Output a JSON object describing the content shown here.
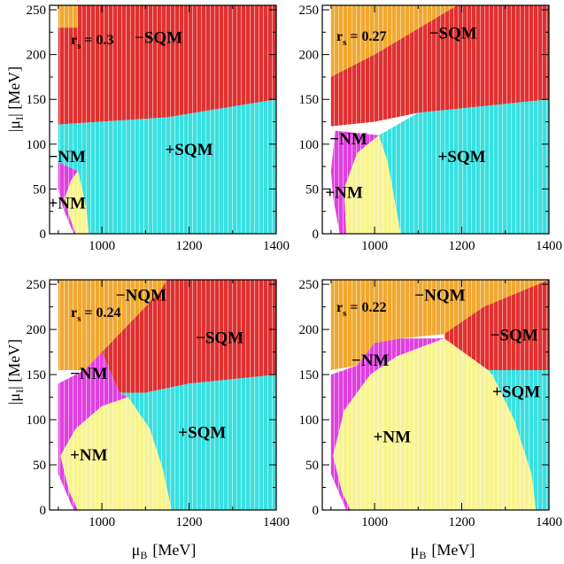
{
  "figure": {
    "x_axis_label": "μ",
    "x_axis_sub": "B",
    "x_axis_unit": "[MeV]",
    "y_axis_label": "|μ",
    "y_axis_sub": "I",
    "y_axis_unit": "| [MeV]"
  },
  "colors": {
    "NQM_orange": "#f0a830",
    "SQM_minus_red": "#e03030",
    "SQM_plus_cyan": "#38e0e0",
    "NM_plus_yellow": "#f8f490",
    "NM_minus_magenta": "#e040e0"
  },
  "chart_data": [
    {
      "type": "phase-diagram",
      "panel": "top-left",
      "rs_prefix": "r",
      "rs_sub": "s",
      "rs_value": "= 0.3",
      "xlim": [
        880,
        1400
      ],
      "ylim": [
        0,
        255
      ],
      "x_ticks": [
        "1000",
        "1200",
        "1400"
      ],
      "y_ticks": [
        "0",
        "50",
        "100",
        "150",
        "200",
        "250"
      ],
      "regions": [
        {
          "name": "NQM",
          "label": "",
          "color": "#f0a830",
          "polygon": [
            [
              900,
              255
            ],
            [
              945,
              255
            ],
            [
              945,
              230
            ],
            [
              900,
              230
            ]
          ]
        },
        {
          "name": "-SQM",
          "label": "−SQM",
          "label_at": [
            1130,
            213
          ],
          "color": "#e03030",
          "polygon": [
            [
              900,
              230
            ],
            [
              945,
              230
            ],
            [
              945,
              255
            ],
            [
              1400,
              255
            ],
            [
              1400,
              150
            ],
            [
              1150,
              130
            ],
            [
              900,
              122
            ]
          ]
        },
        {
          "name": "+SQM",
          "label": "+SQM",
          "label_at": [
            1200,
            88
          ],
          "color": "#38e0e0",
          "polygon": [
            [
              900,
              122
            ],
            [
              1150,
              130
            ],
            [
              1400,
              150
            ],
            [
              1400,
              0
            ],
            [
              970,
              0
            ],
            [
              965,
              25
            ],
            [
              955,
              50
            ],
            [
              945,
              70
            ],
            [
              900,
              80
            ]
          ]
        },
        {
          "name": "-NM",
          "label": "−NM",
          "label_at": [
            920,
            80
          ],
          "color": "#e040e0",
          "polygon": [
            [
              900,
              80
            ],
            [
              945,
              70
            ],
            [
              930,
              60
            ],
            [
              915,
              40
            ],
            [
              925,
              20
            ],
            [
              940,
              0
            ],
            [
              935,
              0
            ],
            [
              910,
              30
            ],
            [
              900,
              50
            ]
          ]
        },
        {
          "name": "+NM",
          "label": "+NM",
          "label_at": [
            920,
            28
          ],
          "color": "#f8f490",
          "polygon": [
            [
              945,
              70
            ],
            [
              955,
              50
            ],
            [
              965,
              25
            ],
            [
              970,
              0
            ],
            [
              940,
              0
            ],
            [
              925,
              20
            ],
            [
              915,
              40
            ],
            [
              930,
              60
            ]
          ]
        }
      ]
    },
    {
      "type": "phase-diagram",
      "panel": "top-right",
      "rs_prefix": "r",
      "rs_sub": "s",
      "rs_value": "= 0.27",
      "xlim": [
        880,
        1400
      ],
      "ylim": [
        0,
        255
      ],
      "x_ticks": [
        "1000",
        "1200",
        "1400"
      ],
      "y_ticks": [
        "0",
        "50",
        "100",
        "150",
        "200",
        "250"
      ],
      "regions": [
        {
          "name": "NQM",
          "label": "",
          "color": "#f0a830",
          "polygon": [
            [
              900,
              255
            ],
            [
              1190,
              255
            ],
            [
              1000,
              200
            ],
            [
              900,
              175
            ]
          ]
        },
        {
          "name": "-SQM",
          "label": "−SQM",
          "label_at": [
            1180,
            218
          ],
          "color": "#e03030",
          "polygon": [
            [
              1190,
              255
            ],
            [
              1400,
              255
            ],
            [
              1400,
              150
            ],
            [
              1100,
              135
            ],
            [
              1000,
              125
            ],
            [
              900,
              120
            ],
            [
              900,
              175
            ],
            [
              1000,
              200
            ]
          ]
        },
        {
          "name": "+SQM",
          "label": "+SQM",
          "label_at": [
            1200,
            80
          ],
          "color": "#38e0e0",
          "polygon": [
            [
              1010,
              110
            ],
            [
              1100,
              135
            ],
            [
              1400,
              150
            ],
            [
              1400,
              0
            ],
            [
              1060,
              0
            ],
            [
              1045,
              40
            ],
            [
              1030,
              80
            ]
          ]
        },
        {
          "name": "-NM",
          "label": "−NM",
          "label_at": [
            940,
            100
          ],
          "color": "#e040e0",
          "polygon": [
            [
              910,
              115
            ],
            [
              1010,
              110
            ],
            [
              960,
              90
            ],
            [
              930,
              50
            ],
            [
              935,
              0
            ],
            [
              920,
              0
            ],
            [
              905,
              40
            ],
            [
              900,
              70
            ]
          ]
        },
        {
          "name": "+NM",
          "label": "+NM",
          "label_at": [
            930,
            40
          ],
          "color": "#f8f490",
          "polygon": [
            [
              1010,
              110
            ],
            [
              1030,
              80
            ],
            [
              1045,
              40
            ],
            [
              1060,
              0
            ],
            [
              935,
              0
            ],
            [
              930,
              50
            ],
            [
              960,
              90
            ]
          ]
        }
      ]
    },
    {
      "type": "phase-diagram",
      "panel": "bottom-left",
      "rs_prefix": "r",
      "rs_sub": "s",
      "rs_value": "= 0.24",
      "xlim": [
        880,
        1400
      ],
      "ylim": [
        0,
        255
      ],
      "x_ticks": [
        "1000",
        "1200",
        "1400"
      ],
      "y_ticks": [
        "0",
        "50",
        "100",
        "150",
        "200",
        "250"
      ],
      "regions": [
        {
          "name": "-NQM",
          "label": "−NQM",
          "label_at": [
            1090,
            232
          ],
          "color": "#f0a830",
          "polygon": [
            [
              900,
              255
            ],
            [
              1150,
              255
            ],
            [
              1130,
              240
            ],
            [
              1050,
              200
            ],
            [
              1000,
              175
            ],
            [
              960,
              155
            ],
            [
              900,
              155
            ]
          ]
        },
        {
          "name": "-SQM",
          "label": "−SQM",
          "label_at": [
            1270,
            185
          ],
          "color": "#e03030",
          "polygon": [
            [
              1150,
              255
            ],
            [
              1400,
              255
            ],
            [
              1400,
              150
            ],
            [
              1200,
              140
            ],
            [
              1100,
              130
            ],
            [
              1040,
              130
            ],
            [
              1000,
              175
            ],
            [
              1050,
              200
            ],
            [
              1130,
              240
            ]
          ]
        },
        {
          "name": "+SQM",
          "label": "+SQM",
          "label_at": [
            1230,
            80
          ],
          "color": "#38e0e0",
          "polygon": [
            [
              1040,
              130
            ],
            [
              1100,
              130
            ],
            [
              1200,
              140
            ],
            [
              1400,
              150
            ],
            [
              1400,
              0
            ],
            [
              1160,
              0
            ],
            [
              1140,
              45
            ],
            [
              1110,
              90
            ],
            [
              1060,
              125
            ]
          ]
        },
        {
          "name": "-NM",
          "label": "−NM",
          "label_at": [
            970,
            145
          ],
          "color": "#e040e0",
          "polygon": [
            [
              960,
              155
            ],
            [
              1000,
              175
            ],
            [
              1040,
              130
            ],
            [
              1060,
              125
            ],
            [
              1000,
              115
            ],
            [
              940,
              90
            ],
            [
              905,
              60
            ],
            [
              925,
              20
            ],
            [
              945,
              0
            ],
            [
              935,
              0
            ],
            [
              900,
              40
            ],
            [
              900,
              140
            ]
          ]
        },
        {
          "name": "+NM",
          "label": "+NM",
          "label_at": [
            970,
            55
          ],
          "color": "#f8f490",
          "polygon": [
            [
              940,
              90
            ],
            [
              1000,
              115
            ],
            [
              1060,
              125
            ],
            [
              1110,
              90
            ],
            [
              1140,
              45
            ],
            [
              1160,
              0
            ],
            [
              945,
              0
            ],
            [
              925,
              20
            ],
            [
              905,
              60
            ]
          ]
        }
      ]
    },
    {
      "type": "phase-diagram",
      "panel": "bottom-right",
      "rs_prefix": "r",
      "rs_sub": "s",
      "rs_value": "= 0.22",
      "xlim": [
        880,
        1400
      ],
      "ylim": [
        0,
        255
      ],
      "x_ticks": [
        "1000",
        "1200",
        "1400"
      ],
      "y_ticks": [
        "0",
        "50",
        "100",
        "150",
        "200",
        "250"
      ],
      "regions": [
        {
          "name": "-NQM",
          "label": "−NQM",
          "label_at": [
            1150,
            232
          ],
          "color": "#f0a830",
          "polygon": [
            [
              900,
              255
            ],
            [
              1400,
              255
            ],
            [
              1250,
              225
            ],
            [
              1160,
              195
            ],
            [
              1060,
              190
            ],
            [
              1000,
              185
            ],
            [
              960,
              160
            ],
            [
              900,
              155
            ]
          ]
        },
        {
          "name": "-SQM",
          "label": "−SQM",
          "label_at": [
            1320,
            188
          ],
          "color": "#e03030",
          "polygon": [
            [
              1250,
              225
            ],
            [
              1400,
              255
            ],
            [
              1400,
              155
            ],
            [
              1260,
              155
            ],
            [
              1160,
              190
            ],
            [
              1160,
              195
            ]
          ]
        },
        {
          "name": "+SQM",
          "label": "+SQM",
          "label_at": [
            1325,
            125
          ],
          "color": "#38e0e0",
          "polygon": [
            [
              1260,
              155
            ],
            [
              1400,
              155
            ],
            [
              1400,
              0
            ],
            [
              1370,
              0
            ],
            [
              1360,
              40
            ],
            [
              1320,
              100
            ],
            [
              1270,
              150
            ]
          ]
        },
        {
          "name": "-NM",
          "label": "−NM",
          "label_at": [
            990,
            160
          ],
          "color": "#e040e0",
          "polygon": [
            [
              960,
              160
            ],
            [
              1000,
              185
            ],
            [
              1060,
              190
            ],
            [
              1160,
              190
            ],
            [
              1050,
              170
            ],
            [
              990,
              150
            ],
            [
              930,
              110
            ],
            [
              905,
              60
            ],
            [
              925,
              20
            ],
            [
              945,
              0
            ],
            [
              935,
              0
            ],
            [
              900,
              40
            ],
            [
              900,
              150
            ]
          ]
        },
        {
          "name": "+NM",
          "label": "+NM",
          "label_at": [
            1040,
            75
          ],
          "color": "#f8f490",
          "polygon": [
            [
              930,
              110
            ],
            [
              990,
              150
            ],
            [
              1050,
              170
            ],
            [
              1160,
              190
            ],
            [
              1260,
              155
            ],
            [
              1270,
              150
            ],
            [
              1320,
              100
            ],
            [
              1360,
              40
            ],
            [
              1370,
              0
            ],
            [
              945,
              0
            ],
            [
              925,
              20
            ],
            [
              905,
              60
            ]
          ]
        }
      ]
    }
  ]
}
